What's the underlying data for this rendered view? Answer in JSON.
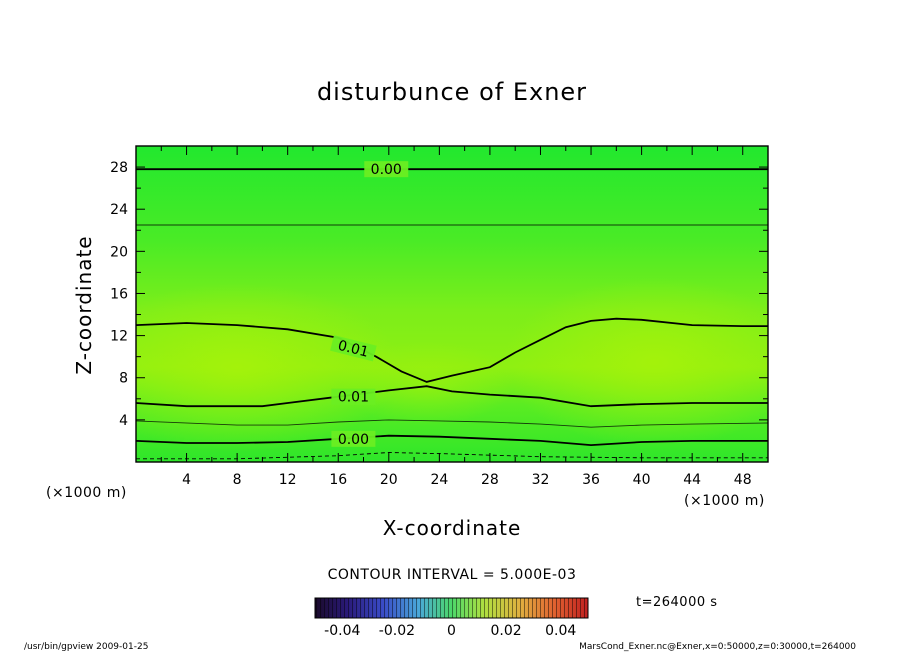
{
  "chart_data": {
    "type": "heatmap",
    "title": "disturbunce of Exner",
    "xlabel": "X-coordinate",
    "ylabel": "Z-coordinate",
    "x_unit_left": "(×1000 m)",
    "x_unit_right": "(×1000 m)",
    "xlim": [
      0,
      50
    ],
    "ylim": [
      0,
      30
    ],
    "xticks": [
      4,
      8,
      12,
      16,
      20,
      24,
      28,
      32,
      36,
      40,
      44,
      48
    ],
    "yticks": [
      4,
      8,
      12,
      16,
      20,
      24,
      28
    ],
    "contour_interval_text": "CONTOUR INTERVAL = 5.000E-03",
    "time_text": "t=264000 s",
    "colorbar": {
      "range": [
        -0.05,
        0.05
      ],
      "tick_labels": [
        "-0.04",
        "-0.02",
        "0",
        "0.02",
        "0.04"
      ],
      "tick_values": [
        -0.04,
        -0.02,
        0,
        0.02,
        0.04
      ]
    },
    "contours": [
      {
        "level": 0.0,
        "style": "solid",
        "label": "0.00",
        "points": [
          [
            0,
            27.8
          ],
          [
            50,
            27.8
          ]
        ]
      },
      {
        "level": 0.005,
        "style": "thin",
        "points": [
          [
            0,
            22.5
          ],
          [
            50,
            22.5
          ]
        ]
      },
      {
        "level": 0.01,
        "style": "solid",
        "label": "0.01",
        "points": [
          [
            0,
            13.0
          ],
          [
            4,
            13.2
          ],
          [
            8,
            13.0
          ],
          [
            12,
            12.6
          ],
          [
            16,
            11.8
          ],
          [
            19,
            10.0
          ],
          [
            21,
            8.6
          ],
          [
            23,
            7.6
          ],
          [
            25,
            8.2
          ],
          [
            28,
            9.0
          ],
          [
            30,
            10.4
          ],
          [
            32,
            11.6
          ],
          [
            34,
            12.8
          ],
          [
            36,
            13.4
          ],
          [
            38,
            13.6
          ],
          [
            40,
            13.5
          ],
          [
            44,
            13.0
          ],
          [
            48,
            12.9
          ],
          [
            50,
            12.9
          ]
        ]
      },
      {
        "level": 0.01,
        "style": "solid",
        "label": "0.01",
        "points": [
          [
            0,
            5.6
          ],
          [
            4,
            5.3
          ],
          [
            8,
            5.3
          ],
          [
            10,
            5.3
          ],
          [
            12,
            5.6
          ],
          [
            16,
            6.2
          ],
          [
            20,
            6.8
          ],
          [
            23,
            7.2
          ],
          [
            25,
            6.7
          ],
          [
            28,
            6.4
          ],
          [
            32,
            6.1
          ],
          [
            36,
            5.3
          ],
          [
            40,
            5.5
          ],
          [
            44,
            5.6
          ],
          [
            48,
            5.6
          ],
          [
            50,
            5.6
          ]
        ]
      },
      {
        "level": 0.005,
        "style": "thin",
        "points": [
          [
            0,
            3.9
          ],
          [
            8,
            3.5
          ],
          [
            12,
            3.5
          ],
          [
            16,
            3.8
          ],
          [
            20,
            4.0
          ],
          [
            24,
            3.9
          ],
          [
            28,
            3.8
          ],
          [
            32,
            3.6
          ],
          [
            36,
            3.3
          ],
          [
            40,
            3.5
          ],
          [
            44,
            3.6
          ],
          [
            50,
            3.7
          ]
        ]
      },
      {
        "level": 0.0,
        "style": "solid",
        "label": "0.00",
        "points": [
          [
            0,
            2.0
          ],
          [
            4,
            1.8
          ],
          [
            8,
            1.8
          ],
          [
            12,
            1.9
          ],
          [
            16,
            2.2
          ],
          [
            20,
            2.5
          ],
          [
            24,
            2.4
          ],
          [
            28,
            2.2
          ],
          [
            32,
            2.0
          ],
          [
            36,
            1.6
          ],
          [
            40,
            1.9
          ],
          [
            44,
            2.0
          ],
          [
            50,
            2.0
          ]
        ]
      },
      {
        "level": -0.005,
        "style": "dashed",
        "points": [
          [
            0,
            0.3
          ],
          [
            8,
            0.3
          ],
          [
            16,
            0.6
          ],
          [
            20,
            0.9
          ],
          [
            24,
            0.8
          ],
          [
            32,
            0.5
          ],
          [
            40,
            0.4
          ],
          [
            50,
            0.4
          ]
        ]
      }
    ]
  },
  "colors": {
    "field_outer": "#22e82e",
    "field_mid": "#66ee22",
    "field_inner": "#99f00e",
    "contour": "#000000"
  },
  "footer": {
    "left": "/usr/bin/gpview   2009-01-25",
    "right": "MarsCond_Exner.nc@Exner,x=0:50000,z=0:30000,t=264000"
  }
}
